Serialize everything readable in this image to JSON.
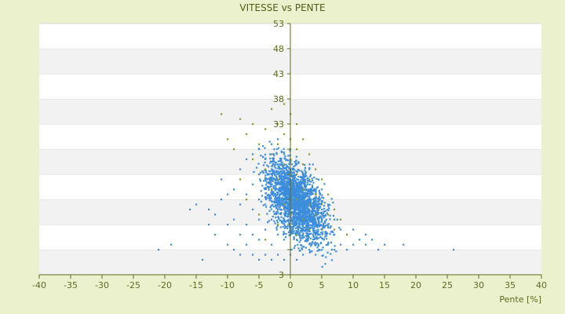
{
  "chart_data": {
    "type": "scatter",
    "title": "VITESSE vs PENTE",
    "xlabel": "Pente [%]",
    "ylabel": "",
    "xlim": [
      -40,
      40
    ],
    "ylim": [
      3,
      53
    ],
    "x_ticks": [
      -40,
      -35,
      -30,
      -25,
      -20,
      -15,
      -10,
      -5,
      0,
      5,
      10,
      15,
      20,
      25,
      30,
      35,
      40
    ],
    "y_ticks": [
      3,
      8,
      13,
      18,
      23,
      28,
      33,
      38,
      43,
      48,
      53
    ],
    "y_tick_labels": [
      "3",
      "",
      "",
      "",
      "",
      "",
      "33",
      "38",
      "43",
      "48",
      "53"
    ],
    "grid": "alternating horizontal bands",
    "legend": "none",
    "colors": {
      "background": "#EBF1CD",
      "plot": "#FFFFFF",
      "band": "#F2F2F2",
      "axis": "#5C6B1E",
      "text": "#5C6B1E",
      "series_1": "#3C8DDC",
      "series_2": "#8A9A24"
    },
    "series": [
      {
        "color": "#3C8DDC",
        "points": [
          [
            -21,
            8
          ],
          [
            -19,
            9
          ],
          [
            -16,
            16
          ],
          [
            -15,
            17
          ],
          [
            -14,
            6
          ],
          [
            -13,
            13
          ],
          [
            -13,
            16
          ],
          [
            -12,
            11
          ],
          [
            -12,
            15
          ],
          [
            -11,
            18
          ],
          [
            -11,
            22
          ],
          [
            -10,
            9
          ],
          [
            -10,
            13
          ],
          [
            -10,
            19
          ],
          [
            -9,
            8
          ],
          [
            -9,
            14
          ],
          [
            -9,
            20
          ],
          [
            -8,
            7
          ],
          [
            -8,
            11
          ],
          [
            -8,
            17
          ],
          [
            -8,
            24
          ],
          [
            -7,
            9
          ],
          [
            -7,
            13
          ],
          [
            -7,
            19
          ],
          [
            -7,
            26
          ],
          [
            -6,
            7
          ],
          [
            -6,
            11
          ],
          [
            -6,
            16
          ],
          [
            -6,
            21
          ],
          [
            -6,
            27
          ],
          [
            -5,
            6
          ],
          [
            -5,
            10
          ],
          [
            -5,
            14
          ],
          [
            -5,
            18
          ],
          [
            -5,
            23
          ],
          [
            -5,
            28
          ],
          [
            -4,
            7
          ],
          [
            -4,
            12
          ],
          [
            -4,
            17
          ],
          [
            -4,
            22
          ],
          [
            -4,
            26
          ],
          [
            -3,
            6
          ],
          [
            -3,
            9
          ],
          [
            -3,
            14
          ],
          [
            -3,
            19
          ],
          [
            -3,
            24
          ],
          [
            -3,
            29
          ],
          [
            -2,
            7
          ],
          [
            -2,
            11
          ],
          [
            -2,
            16
          ],
          [
            -2,
            20
          ],
          [
            -2,
            25
          ],
          [
            -2,
            30
          ],
          [
            -1,
            6
          ],
          [
            -1,
            10
          ],
          [
            -1,
            14
          ],
          [
            -1,
            18
          ],
          [
            -1,
            22
          ],
          [
            -1,
            27
          ],
          [
            0,
            7
          ],
          [
            0,
            12
          ],
          [
            0,
            16
          ],
          [
            0,
            20
          ],
          [
            0,
            24
          ],
          [
            0,
            28
          ],
          [
            1,
            6
          ],
          [
            1,
            10
          ],
          [
            1,
            13
          ],
          [
            1,
            17
          ],
          [
            1,
            21
          ],
          [
            1,
            25
          ],
          [
            2,
            7
          ],
          [
            2,
            11
          ],
          [
            2,
            15
          ],
          [
            2,
            19
          ],
          [
            2,
            23
          ],
          [
            3,
            8
          ],
          [
            3,
            12
          ],
          [
            3,
            16
          ],
          [
            3,
            20
          ],
          [
            3,
            24
          ],
          [
            4,
            7
          ],
          [
            4,
            11
          ],
          [
            4,
            14
          ],
          [
            4,
            18
          ],
          [
            5,
            8
          ],
          [
            5,
            12
          ],
          [
            5,
            16
          ],
          [
            5,
            20
          ],
          [
            6,
            9
          ],
          [
            6,
            13
          ],
          [
            6,
            17
          ],
          [
            7,
            8
          ],
          [
            7,
            11
          ],
          [
            7,
            14
          ],
          [
            8,
            9
          ],
          [
            8,
            12
          ],
          [
            9,
            8
          ],
          [
            9,
            11
          ],
          [
            10,
            9
          ],
          [
            10,
            12
          ],
          [
            11,
            10
          ],
          [
            12,
            9
          ],
          [
            12,
            11
          ],
          [
            13,
            10
          ],
          [
            14,
            8
          ],
          [
            15,
            9
          ],
          [
            18,
            9
          ],
          [
            26,
            8
          ]
        ],
        "density_region": {
          "x": [
            -4,
            6
          ],
          "y": [
            9,
            26
          ]
        }
      },
      {
        "color": "#8A9A24",
        "points": [
          [
            -11,
            35
          ],
          [
            -10,
            30
          ],
          [
            -9,
            28
          ],
          [
            -8,
            34
          ],
          [
            -8,
            22
          ],
          [
            -7,
            31
          ],
          [
            -7,
            18
          ],
          [
            -6,
            26
          ],
          [
            -6,
            33
          ],
          [
            -5,
            29
          ],
          [
            -5,
            15
          ],
          [
            -4,
            32
          ],
          [
            -4,
            24
          ],
          [
            -4,
            10
          ],
          [
            -3,
            36
          ],
          [
            -3,
            27
          ],
          [
            -3,
            20
          ],
          [
            -2,
            33
          ],
          [
            -2,
            29
          ],
          [
            -2,
            22
          ],
          [
            -2,
            13
          ],
          [
            -1,
            37
          ],
          [
            -1,
            31
          ],
          [
            -1,
            25
          ],
          [
            -1,
            17
          ],
          [
            0,
            35
          ],
          [
            0,
            30
          ],
          [
            0,
            26
          ],
          [
            0,
            21
          ],
          [
            0,
            15
          ],
          [
            1,
            33
          ],
          [
            1,
            28
          ],
          [
            1,
            23
          ],
          [
            1,
            18
          ],
          [
            1,
            11
          ],
          [
            2,
            30
          ],
          [
            2,
            25
          ],
          [
            2,
            20
          ],
          [
            2,
            14
          ],
          [
            3,
            27
          ],
          [
            3,
            22
          ],
          [
            3,
            17
          ],
          [
            3,
            12
          ],
          [
            4,
            24
          ],
          [
            4,
            19
          ],
          [
            4,
            15
          ],
          [
            5,
            22
          ],
          [
            5,
            17
          ],
          [
            5,
            12
          ],
          [
            6,
            19
          ],
          [
            6,
            15
          ],
          [
            7,
            16
          ],
          [
            7,
            12
          ],
          [
            8,
            14
          ],
          [
            9,
            11
          ]
        ]
      }
    ]
  }
}
